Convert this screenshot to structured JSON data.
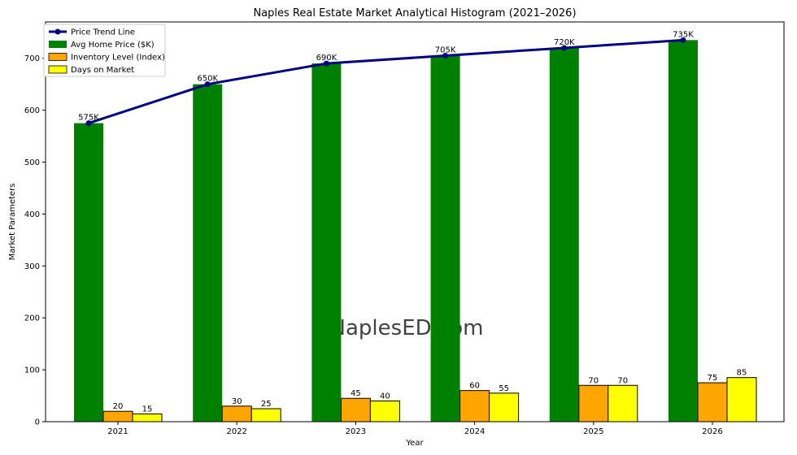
{
  "chart_data": {
    "type": "bar",
    "title": "Naples Real Estate Market Analytical Histogram (2021–2026)",
    "xlabel": "Year",
    "ylabel": "Market Parameters",
    "categories": [
      "2021",
      "2022",
      "2023",
      "2024",
      "2025",
      "2026"
    ],
    "ylim": [
      0,
      770
    ],
    "yticks": [
      0,
      100,
      200,
      300,
      400,
      500,
      600,
      700
    ],
    "grid": false,
    "legend_position": "top-left",
    "series": [
      {
        "name": "Avg Home Price ($K)",
        "type": "bar",
        "color": "#008000",
        "values": [
          575,
          650,
          690,
          705,
          720,
          735
        ]
      },
      {
        "name": "Inventory Level (Index)",
        "type": "bar",
        "color": "#FFA500",
        "values": [
          20,
          30,
          45,
          60,
          70,
          75
        ],
        "labels": [
          "20",
          "30",
          "45",
          "60",
          "70",
          "75"
        ]
      },
      {
        "name": "Days on Market",
        "type": "bar",
        "color": "#FFFF00",
        "values": [
          15,
          25,
          40,
          55,
          70,
          85
        ],
        "labels": [
          "15",
          "25",
          "40",
          "55",
          "70",
          "85"
        ]
      },
      {
        "name": "Price Trend Line",
        "type": "line",
        "color": "#000080",
        "values": [
          575,
          650,
          690,
          705,
          720,
          735
        ],
        "labels": [
          "575K",
          "650K",
          "690K",
          "705K",
          "720K",
          "735K"
        ]
      }
    ],
    "legend_order": [
      "Price Trend Line",
      "Avg Home Price ($K)",
      "Inventory Level (Index)",
      "Days on Market"
    ],
    "watermark": "NaplesED.com"
  }
}
